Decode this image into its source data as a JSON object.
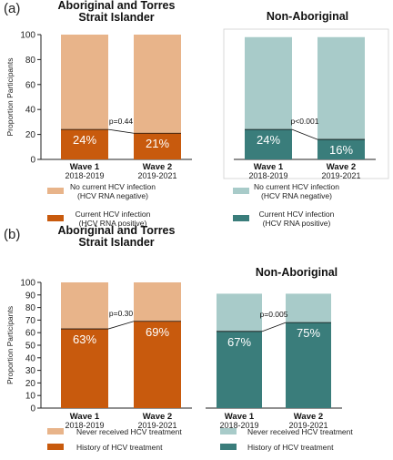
{
  "figure": {
    "panels": [
      {
        "label": "(a)",
        "charts": [
          {
            "title": [
              "Aboriginal and  Torres",
              "Strait  Islander"
            ],
            "title_bold": true,
            "ylabel": "Proportion Participants",
            "yticks": [
              0,
              20,
              40,
              60,
              80,
              100
            ],
            "ylim": [
              0,
              100
            ],
            "bar_top": 100,
            "bars": [
              {
                "wave": "Wave 1",
                "years": "2018-2019",
                "value": 24,
                "label": "24%"
              },
              {
                "wave": "Wave 2",
                "years": "2019-2021",
                "value": 21,
                "label": "21%"
              }
            ],
            "pvalue": "p=0.44",
            "colors": {
              "top": "#e8b48a",
              "bottom": "#c85a0d"
            },
            "legend": [
              {
                "line1": "No current  HCV infection",
                "line2": "(HCV RNA negative)",
                "color": "#e8b48a"
              },
              {
                "line1": "Current  HCV infection",
                "line2": "(HCV RNA positive)",
                "color": "#c85a0d"
              }
            ]
          },
          {
            "title": [
              "Non-Aboriginal"
            ],
            "title_bold": true,
            "bar_top": 98,
            "bars": [
              {
                "wave": "Wave 1",
                "years": "2018-2019",
                "value": 24,
                "label": "24%"
              },
              {
                "wave": "Wave 2",
                "years": "2019-2021",
                "value": 16,
                "label": "16%"
              }
            ],
            "pvalue": "p<0.001",
            "colors": {
              "top": "#a8cbc9",
              "bottom": "#3a7d7b"
            },
            "legend": [
              {
                "line1": "No current  HCV infection",
                "line2": "(HCV RNA negative)",
                "color": "#a8cbc9"
              },
              {
                "line1": "Current  HCV infection",
                "line2": "(HCV RNA positive)",
                "color": "#3a7d7b"
              }
            ]
          }
        ]
      },
      {
        "label": "(b)",
        "charts": [
          {
            "title": [
              "Aboriginal and  Torres",
              "Strait  Islander"
            ],
            "title_bold": true,
            "ylabel": "Proportion Participants",
            "yticks": [
              0,
              10,
              20,
              30,
              40,
              50,
              60,
              70,
              80,
              90,
              100
            ],
            "ylim": [
              0,
              100
            ],
            "bar_top": 100,
            "bars": [
              {
                "wave": "Wave 1",
                "years": "2018-2019",
                "value": 63,
                "label": "63%"
              },
              {
                "wave": "Wave 2",
                "years": "2019-2021",
                "value": 69,
                "label": "69%"
              }
            ],
            "pvalue": "p=0.30",
            "colors": {
              "top": "#e8b48a",
              "bottom": "#c85a0d"
            },
            "legend": [
              {
                "line1": "Never received  HCV treatment",
                "line2": "",
                "color": "#e8b48a"
              },
              {
                "line1": "History of  HCV treatment",
                "line2": "",
                "color": "#c85a0d"
              }
            ]
          },
          {
            "title": [
              "Non-Aboriginal"
            ],
            "title_bold": true,
            "bar_top": 91,
            "bars": [
              {
                "wave": "Wave 1",
                "years": "2018-2019",
                "value": 61,
                "label": "67%"
              },
              {
                "wave": "Wave 2",
                "years": "2019-2021",
                "value": 68,
                "label": "75%"
              }
            ],
            "pvalue": "p=0.005",
            "colors": {
              "top": "#a8cbc9",
              "bottom": "#3a7d7b"
            },
            "legend": [
              {
                "line1": "Never received  HCV treatment",
                "line2": "",
                "color": "#a8cbc9"
              },
              {
                "line1": "History of  HCV treatment",
                "line2": "",
                "color": "#3a7d7b"
              }
            ]
          }
        ]
      }
    ]
  },
  "chart_data": [
    {
      "type": "bar",
      "stacked": true,
      "title": "Aboriginal and Torres Strait Islander",
      "ylabel": "Proportion Participants",
      "categories": [
        "Wave 1 2018-2019",
        "Wave 2 2019-2021"
      ],
      "series": [
        {
          "name": "Current HCV infection (HCV RNA positive)",
          "values": [
            24,
            21
          ]
        },
        {
          "name": "No current HCV infection (HCV RNA negative)",
          "values": [
            76,
            79
          ]
        }
      ],
      "annotations": [
        "p=0.44"
      ],
      "ylim": [
        0,
        100
      ]
    },
    {
      "type": "bar",
      "stacked": true,
      "title": "Non-Aboriginal",
      "categories": [
        "Wave 1 2018-2019",
        "Wave 2 2019-2021"
      ],
      "series": [
        {
          "name": "Current HCV infection (HCV RNA positive)",
          "values": [
            24,
            16
          ]
        },
        {
          "name": "No current HCV infection (HCV RNA negative)",
          "values": [
            74,
            82
          ]
        }
      ],
      "annotations": [
        "p<0.001"
      ],
      "ylim": [
        0,
        100
      ]
    },
    {
      "type": "bar",
      "stacked": true,
      "title": "Aboriginal and Torres Strait Islander",
      "ylabel": "Proportion Participants",
      "categories": [
        "Wave 1 2018-2019",
        "Wave 2 2019-2021"
      ],
      "series": [
        {
          "name": "History of HCV treatment",
          "values": [
            63,
            69
          ]
        },
        {
          "name": "Never received HCV treatment",
          "values": [
            37,
            31
          ]
        }
      ],
      "annotations": [
        "p=0.30"
      ],
      "ylim": [
        0,
        100
      ]
    },
    {
      "type": "bar",
      "stacked": true,
      "title": "Non-Aboriginal",
      "categories": [
        "Wave 1 2018-2019",
        "Wave 2 2019-2021"
      ],
      "series": [
        {
          "name": "History of HCV treatment",
          "values": [
            67,
            75
          ]
        },
        {
          "name": "Never received HCV treatment",
          "values": [
            33,
            25
          ]
        }
      ],
      "annotations": [
        "p=0.005"
      ],
      "ylim": [
        0,
        100
      ]
    }
  ]
}
